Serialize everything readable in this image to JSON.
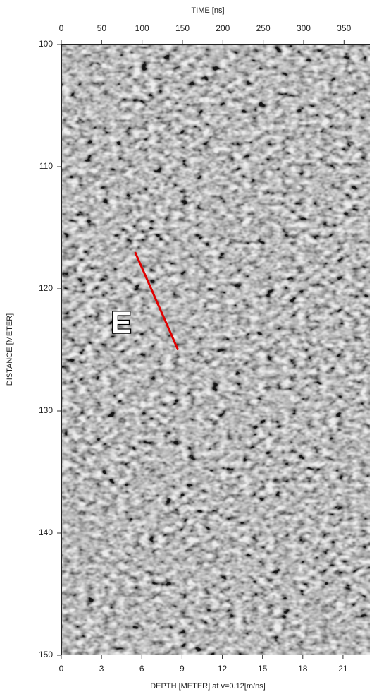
{
  "chart_data": {
    "type": "radargram",
    "xlabel": "DEPTH [METER] at v=0.12[m/ns]",
    "x2label": "TIME [ns]",
    "ylabel": "DISTANCE [METER]",
    "xlim": [
      0,
      23
    ],
    "xticks": [
      0,
      3,
      6,
      9,
      12,
      15,
      18,
      21
    ],
    "x2lim": [
      0,
      382
    ],
    "x2ticks": [
      0,
      50,
      100,
      150,
      200,
      250,
      300,
      350
    ],
    "ylim": [
      100,
      150
    ],
    "yticks": [
      100,
      110,
      120,
      130,
      140,
      150
    ],
    "y_inverted": true,
    "annotation": "E",
    "overlay_line": {
      "color": "#e00000",
      "x": [
        5.5,
        8.7
      ],
      "y": [
        117,
        125
      ]
    }
  }
}
